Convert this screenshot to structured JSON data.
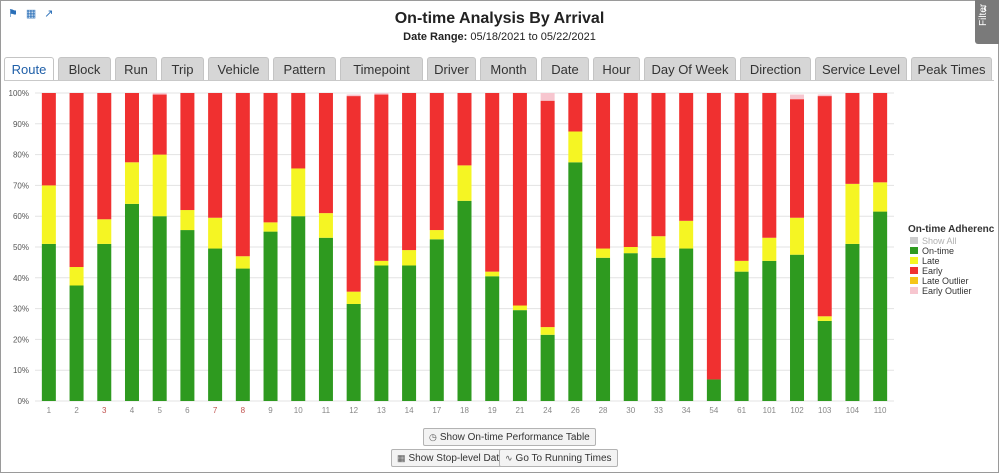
{
  "header": {
    "title": "On-time Analysis By Arrival",
    "date_range_label": "Date Range:",
    "date_from": "05/18/2021",
    "date_to_word": "to",
    "date_to": "05/22/2021",
    "icons": [
      "bookmark-icon",
      "calendar-icon",
      "external-link-icon"
    ]
  },
  "filter_panel": {
    "label": "Filter",
    "icon": "chevron-left-icon"
  },
  "tabs": [
    {
      "label": "Route",
      "active": true
    },
    {
      "label": "Block"
    },
    {
      "label": "Run"
    },
    {
      "label": "Trip"
    },
    {
      "label": "Vehicle"
    },
    {
      "label": "Pattern"
    },
    {
      "label": "Timepoint"
    },
    {
      "label": "Driver"
    },
    {
      "label": "Month"
    },
    {
      "label": "Date"
    },
    {
      "label": "Hour"
    },
    {
      "label": "Day Of Week"
    },
    {
      "label": "Direction"
    },
    {
      "label": "Service Level"
    },
    {
      "label": "Peak Times"
    }
  ],
  "buttons": {
    "table": {
      "label": "Show On-time Performance Table",
      "icon": "clock-icon"
    },
    "stop_level": {
      "label": "Show Stop-level Data",
      "icon": "table-icon"
    },
    "running_times": {
      "label": "Go To Running Times",
      "icon": "line-chart-icon"
    }
  },
  "chart_data": {
    "type": "bar",
    "stacked": true,
    "categories": [
      "1",
      "2",
      "3",
      "4",
      "5",
      "6",
      "7",
      "8",
      "9",
      "10",
      "11",
      "12",
      "13",
      "14",
      "17",
      "18",
      "19",
      "21",
      "24",
      "26",
      "28",
      "30",
      "33",
      "34",
      "54",
      "61",
      "101",
      "102",
      "103",
      "104",
      "110"
    ],
    "category_colors": [
      "#888888",
      "#888888",
      "#c0504d",
      "#888888",
      "#888888",
      "#888888",
      "#c0504d",
      "#c0504d",
      "#888888",
      "#888888",
      "#888888",
      "#888888",
      "#888888",
      "#888888",
      "#888888",
      "#888888",
      "#888888",
      "#888888",
      "#888888",
      "#888888",
      "#888888",
      "#888888",
      "#888888",
      "#888888",
      "#888888",
      "#888888",
      "#888888",
      "#888888",
      "#888888",
      "#888888",
      "#888888"
    ],
    "series": [
      {
        "name": "On-time",
        "color": "#2e9a1f",
        "values": [
          51,
          37.5,
          51,
          64,
          60,
          55.5,
          49.5,
          43,
          55,
          60,
          53,
          31.5,
          44,
          44,
          52.5,
          65,
          40.5,
          29.5,
          21.5,
          77.5,
          46.5,
          48,
          46.5,
          49.5,
          7,
          42,
          45.5,
          47.5,
          26,
          51,
          61.5
        ]
      },
      {
        "name": "Late",
        "color": "#f5f523",
        "values": [
          19,
          6,
          8,
          13.5,
          20,
          6.5,
          10,
          4,
          3,
          15.5,
          8,
          4,
          1.5,
          5,
          3,
          11.5,
          1.5,
          1.5,
          2.5,
          10,
          3,
          2,
          7,
          9,
          0,
          3.5,
          7.5,
          12,
          1.5,
          19.5,
          9.5
        ]
      },
      {
        "name": "Early",
        "color": "#f03030",
        "values": [
          30,
          56.5,
          41,
          22.5,
          19.5,
          38,
          40.5,
          53,
          42,
          24.5,
          39,
          63.5,
          54,
          51,
          44.5,
          23.5,
          58,
          69,
          73.5,
          12.5,
          50.5,
          50,
          46.5,
          41.5,
          93,
          54.5,
          47,
          38.5,
          71.5,
          29.5,
          29
        ]
      },
      {
        "name": "Late Outlier",
        "color": "#f5c518",
        "values": [
          0,
          0,
          0,
          0,
          0,
          0,
          0,
          0,
          0,
          0,
          0,
          0,
          0,
          0,
          0,
          0,
          0,
          0,
          0,
          0,
          0,
          0,
          0,
          0,
          0,
          0,
          0,
          0,
          0,
          0,
          0
        ]
      },
      {
        "name": "Early Outlier",
        "color": "#f7c6cf",
        "values": [
          0,
          0,
          0,
          0,
          0.5,
          0,
          0,
          0,
          0,
          0,
          0,
          0.5,
          0.5,
          0,
          0,
          0,
          0,
          0,
          2.5,
          0,
          0,
          0,
          0,
          0,
          0,
          0,
          0,
          1.5,
          0.5,
          0,
          0
        ]
      }
    ],
    "yticks": [
      "0%",
      "10%",
      "20%",
      "30%",
      "40%",
      "50%",
      "60%",
      "70%",
      "80%",
      "90%",
      "100%"
    ],
    "ylim": [
      0,
      100
    ],
    "grid": true,
    "legend": {
      "title": "On-time Adherence",
      "position": "right",
      "items": [
        {
          "label": "Show All",
          "color": "#cccccc",
          "disabled": true
        },
        {
          "label": "On-time",
          "color": "#2e9a1f"
        },
        {
          "label": "Late",
          "color": "#f5f523"
        },
        {
          "label": "Early",
          "color": "#f03030"
        },
        {
          "label": "Late Outlier",
          "color": "#f5c518"
        },
        {
          "label": "Early Outlier",
          "color": "#f7c6cf"
        }
      ]
    }
  }
}
